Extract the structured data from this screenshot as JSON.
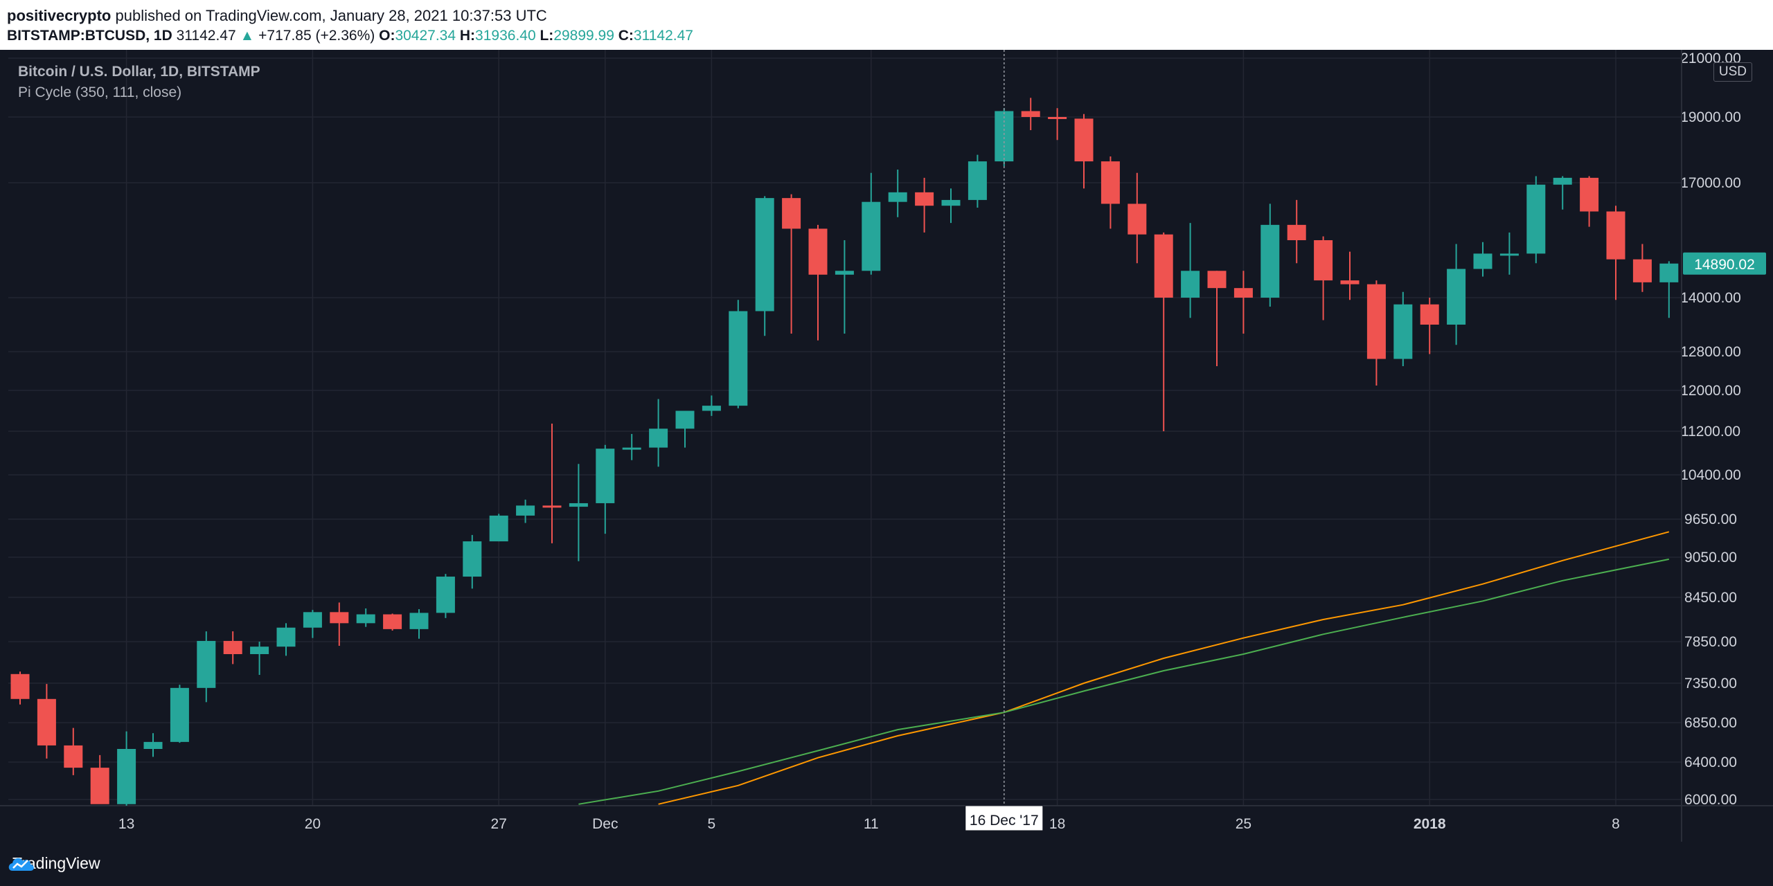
{
  "header": {
    "author": "positivecrypto",
    "published_text": " published on TradingView.com, January 28, 2021 10:37:53 UTC",
    "symbol": "BITSTAMP:BTCUSD, 1D",
    "price": "31142.47",
    "change": "+717.85 (+2.36%)",
    "o_label": "O:",
    "o_value": "30427.34",
    "h_label": "H:",
    "h_value": "31936.40",
    "l_label": "L:",
    "l_value": "29899.99",
    "c_label": "C:",
    "c_value": "31142.47",
    "arrow_icon": "triangle-up-icon"
  },
  "legend": {
    "title": "Bitcoin / U.S. Dollar, 1D, BITSTAMP",
    "indicator": "Pi Cycle (350, 111, close)"
  },
  "currency_badge": "USD",
  "crosshair_label": "16 Dec '17",
  "last_price_label": "14890.02",
  "footer": {
    "brand": "TradingView"
  },
  "colors": {
    "up": "#26a69a",
    "down": "#ef5350",
    "background": "#131722",
    "grid": "#232632",
    "axis_text": "#d1d4dc",
    "ma_orange": "#ff9800",
    "ma_green": "#4caf50"
  },
  "chart_data": {
    "type": "candlestick",
    "y_ticks": [
      "21000.00",
      "19000.00",
      "17000.00",
      "14000.00",
      "12800.00",
      "12000.00",
      "11200.00",
      "10400.00",
      "9650.00",
      "9050.00",
      "8450.00",
      "7850.00",
      "7350.00",
      "6850.00",
      "6400.00",
      "6000.00"
    ],
    "x_ticks": [
      {
        "label": "13",
        "date": "2017-11-13"
      },
      {
        "label": "20",
        "date": "2017-11-20"
      },
      {
        "label": "27",
        "date": "2017-11-27"
      },
      {
        "label": "Dec",
        "date": "2017-12-01"
      },
      {
        "label": "5",
        "date": "2017-12-05"
      },
      {
        "label": "11",
        "date": "2017-12-11"
      },
      {
        "label": "18",
        "date": "2017-12-18"
      },
      {
        "label": "25",
        "date": "2017-12-25"
      },
      {
        "label": "2018",
        "date": "2018-01-01",
        "bold": true
      },
      {
        "label": "8",
        "date": "2018-01-08"
      }
    ],
    "candles": [
      {
        "date": "2017-11-09",
        "o": 7460,
        "h": 7490,
        "l": 7080,
        "c": 7150
      },
      {
        "date": "2017-11-10",
        "o": 7150,
        "h": 7340,
        "l": 6440,
        "c": 6590
      },
      {
        "date": "2017-11-11",
        "o": 6590,
        "h": 6790,
        "l": 6260,
        "c": 6340
      },
      {
        "date": "2017-11-12",
        "o": 6340,
        "h": 6480,
        "l": 5960,
        "c": 5950
      },
      {
        "date": "2017-11-13",
        "o": 5950,
        "h": 6750,
        "l": 5840,
        "c": 6550
      },
      {
        "date": "2017-11-14",
        "o": 6550,
        "h": 6730,
        "l": 6460,
        "c": 6630
      },
      {
        "date": "2017-11-15",
        "o": 6630,
        "h": 7330,
        "l": 6620,
        "c": 7290
      },
      {
        "date": "2017-11-16",
        "o": 7290,
        "h": 7990,
        "l": 7110,
        "c": 7860
      },
      {
        "date": "2017-11-17",
        "o": 7860,
        "h": 7990,
        "l": 7580,
        "c": 7700
      },
      {
        "date": "2017-11-18",
        "o": 7700,
        "h": 7850,
        "l": 7450,
        "c": 7790
      },
      {
        "date": "2017-11-19",
        "o": 7790,
        "h": 8100,
        "l": 7680,
        "c": 8040
      },
      {
        "date": "2017-11-20",
        "o": 8040,
        "h": 8280,
        "l": 7900,
        "c": 8250
      },
      {
        "date": "2017-11-21",
        "o": 8250,
        "h": 8380,
        "l": 7800,
        "c": 8100
      },
      {
        "date": "2017-11-22",
        "o": 8100,
        "h": 8300,
        "l": 8050,
        "c": 8220
      },
      {
        "date": "2017-11-23",
        "o": 8220,
        "h": 8230,
        "l": 8000,
        "c": 8020
      },
      {
        "date": "2017-11-24",
        "o": 8020,
        "h": 8290,
        "l": 7890,
        "c": 8240
      },
      {
        "date": "2017-11-25",
        "o": 8240,
        "h": 8800,
        "l": 8170,
        "c": 8760
      },
      {
        "date": "2017-11-26",
        "o": 8760,
        "h": 9400,
        "l": 8580,
        "c": 9300
      },
      {
        "date": "2017-11-27",
        "o": 9300,
        "h": 9740,
        "l": 9300,
        "c": 9710
      },
      {
        "date": "2017-11-28",
        "o": 9710,
        "h": 9980,
        "l": 9590,
        "c": 9880
      },
      {
        "date": "2017-11-29",
        "o": 9880,
        "h": 11350,
        "l": 9270,
        "c": 9860
      },
      {
        "date": "2017-11-30",
        "o": 9860,
        "h": 10600,
        "l": 8990,
        "c": 9920
      },
      {
        "date": "2017-12-01",
        "o": 9920,
        "h": 10950,
        "l": 9420,
        "c": 10880
      },
      {
        "date": "2017-12-02",
        "o": 10880,
        "h": 11150,
        "l": 10670,
        "c": 10900
      },
      {
        "date": "2017-12-03",
        "o": 10900,
        "h": 11830,
        "l": 10550,
        "c": 11250
      },
      {
        "date": "2017-12-04",
        "o": 11250,
        "h": 11600,
        "l": 10900,
        "c": 11600
      },
      {
        "date": "2017-12-05",
        "o": 11600,
        "h": 11900,
        "l": 11500,
        "c": 11700
      },
      {
        "date": "2017-12-06",
        "o": 11700,
        "h": 13950,
        "l": 11650,
        "c": 13700
      },
      {
        "date": "2017-12-07",
        "o": 13700,
        "h": 16650,
        "l": 13150,
        "c": 16600
      },
      {
        "date": "2017-12-08",
        "o": 16600,
        "h": 16700,
        "l": 13200,
        "c": 15800
      },
      {
        "date": "2017-12-09",
        "o": 15800,
        "h": 15900,
        "l": 13050,
        "c": 14600
      },
      {
        "date": "2017-12-10",
        "o": 14600,
        "h": 15500,
        "l": 13200,
        "c": 14700
      },
      {
        "date": "2017-12-11",
        "o": 14700,
        "h": 17300,
        "l": 14600,
        "c": 16500
      },
      {
        "date": "2017-12-12",
        "o": 16500,
        "h": 17400,
        "l": 16100,
        "c": 16750
      },
      {
        "date": "2017-12-13",
        "o": 16750,
        "h": 17150,
        "l": 15700,
        "c": 16400
      },
      {
        "date": "2017-12-14",
        "o": 16400,
        "h": 16850,
        "l": 15950,
        "c": 16550
      },
      {
        "date": "2017-12-15",
        "o": 16550,
        "h": 17850,
        "l": 16350,
        "c": 17650
      },
      {
        "date": "2017-12-16",
        "o": 17650,
        "h": 19300,
        "l": 17500,
        "c": 19200
      },
      {
        "date": "2017-12-17",
        "o": 19200,
        "h": 19650,
        "l": 18600,
        "c": 19000
      },
      {
        "date": "2017-12-18",
        "o": 19000,
        "h": 19300,
        "l": 18300,
        "c": 18950
      },
      {
        "date": "2017-12-19",
        "o": 18950,
        "h": 19100,
        "l": 16850,
        "c": 17650
      },
      {
        "date": "2017-12-20",
        "o": 17650,
        "h": 17800,
        "l": 15800,
        "c": 16450
      },
      {
        "date": "2017-12-21",
        "o": 16450,
        "h": 17300,
        "l": 14900,
        "c": 15650
      },
      {
        "date": "2017-12-22",
        "o": 15650,
        "h": 15700,
        "l": 11200,
        "c": 14000
      },
      {
        "date": "2017-12-23",
        "o": 14000,
        "h": 15950,
        "l": 13550,
        "c": 14700
      },
      {
        "date": "2017-12-24",
        "o": 14700,
        "h": 14700,
        "l": 12500,
        "c": 14250
      },
      {
        "date": "2017-12-25",
        "o": 14250,
        "h": 14700,
        "l": 13200,
        "c": 14000
      },
      {
        "date": "2017-12-26",
        "o": 14000,
        "h": 16450,
        "l": 13800,
        "c": 15900
      },
      {
        "date": "2017-12-27",
        "o": 15900,
        "h": 16550,
        "l": 14900,
        "c": 15500
      },
      {
        "date": "2017-12-28",
        "o": 15500,
        "h": 15600,
        "l": 13500,
        "c": 14450
      },
      {
        "date": "2017-12-29",
        "o": 14450,
        "h": 15200,
        "l": 13950,
        "c": 14350
      },
      {
        "date": "2017-12-30",
        "o": 14350,
        "h": 14450,
        "l": 12100,
        "c": 12650
      },
      {
        "date": "2017-12-31",
        "o": 12650,
        "h": 14150,
        "l": 12500,
        "c": 13850
      },
      {
        "date": "2018-01-01",
        "o": 13850,
        "h": 14000,
        "l": 12750,
        "c": 13400
      },
      {
        "date": "2018-01-02",
        "o": 13400,
        "h": 15400,
        "l": 12950,
        "c": 14750
      },
      {
        "date": "2018-01-03",
        "o": 14750,
        "h": 15450,
        "l": 14550,
        "c": 15150
      },
      {
        "date": "2018-01-04",
        "o": 15150,
        "h": 15700,
        "l": 14600,
        "c": 15150
      },
      {
        "date": "2018-01-05",
        "o": 15150,
        "h": 17200,
        "l": 14900,
        "c": 16950
      },
      {
        "date": "2018-01-06",
        "o": 16950,
        "h": 17200,
        "l": 16300,
        "c": 17150
      },
      {
        "date": "2018-01-07",
        "o": 17150,
        "h": 17200,
        "l": 15850,
        "c": 16250
      },
      {
        "date": "2018-01-08",
        "o": 16250,
        "h": 16400,
        "l": 13950,
        "c": 15000
      },
      {
        "date": "2018-01-09",
        "o": 15000,
        "h": 15400,
        "l": 14150,
        "c": 14400
      },
      {
        "date": "2018-01-10",
        "o": 14400,
        "h": 14950,
        "l": 13550,
        "c": 14890
      }
    ],
    "series": [
      {
        "name": "",
        "color": "#ff9800",
        "x": [
          "2017-12-03",
          "2017-12-06",
          "2017-12-09",
          "2017-12-12",
          "2017-12-16",
          "2017-12-19",
          "2017-12-22",
          "2017-12-25",
          "2017-12-28",
          "2017-12-31",
          "2018-01-03",
          "2018-01-06",
          "2018-01-10"
        ],
        "values": [
          5950,
          6150,
          6450,
          6700,
          6980,
          7350,
          7650,
          7900,
          8150,
          8350,
          8650,
          9000,
          9450
        ]
      },
      {
        "name": "",
        "color": "#4caf50",
        "x": [
          "2017-11-30",
          "2017-12-03",
          "2017-12-06",
          "2017-12-09",
          "2017-12-12",
          "2017-12-16",
          "2017-12-19",
          "2017-12-22",
          "2017-12-25",
          "2017-12-28",
          "2017-12-31",
          "2018-01-03",
          "2018-01-06",
          "2018-01-10"
        ],
        "values": [
          5950,
          6090,
          6300,
          6530,
          6770,
          6980,
          7250,
          7500,
          7700,
          7950,
          8180,
          8400,
          8700,
          9020
        ]
      }
    ]
  }
}
